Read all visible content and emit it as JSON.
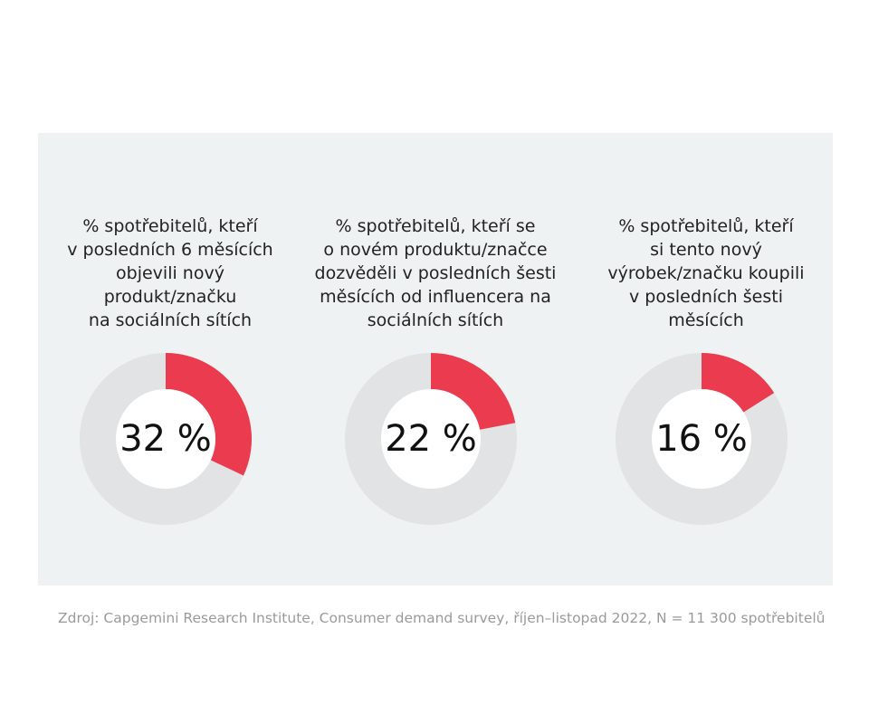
{
  "chart_data": [
    {
      "type": "pie",
      "title": "% spotřebitelů, kteří\nv posledních 6 měsících\nobjevili nový\nprodukt/značku\nna sociálních sítích",
      "value": 32,
      "value_label": "32 %"
    },
    {
      "type": "pie",
      "title": "% spotřebitelů, kteří se\no novém produktu/značce\ndozvěděli v posledních šesti\nměsících od influencera na\nsociálních sítích",
      "value": 22,
      "value_label": "22 %"
    },
    {
      "type": "pie",
      "title": "% spotřebitelů, kteří\nsi tento nový\nvýrobek/značku koupili\nv posledních šesti\nměsících",
      "value": 16,
      "value_label": "16 %"
    }
  ],
  "colors": {
    "accent": "#ea3b4f",
    "track": "#e1e3e4",
    "hole": "#ffffff",
    "panel": "#eff2f2"
  },
  "source": "Zdroj: Capgemini Research Institute, Consumer demand survey, říjen–listopad 2022, N = 11 300 spotřebitelů"
}
